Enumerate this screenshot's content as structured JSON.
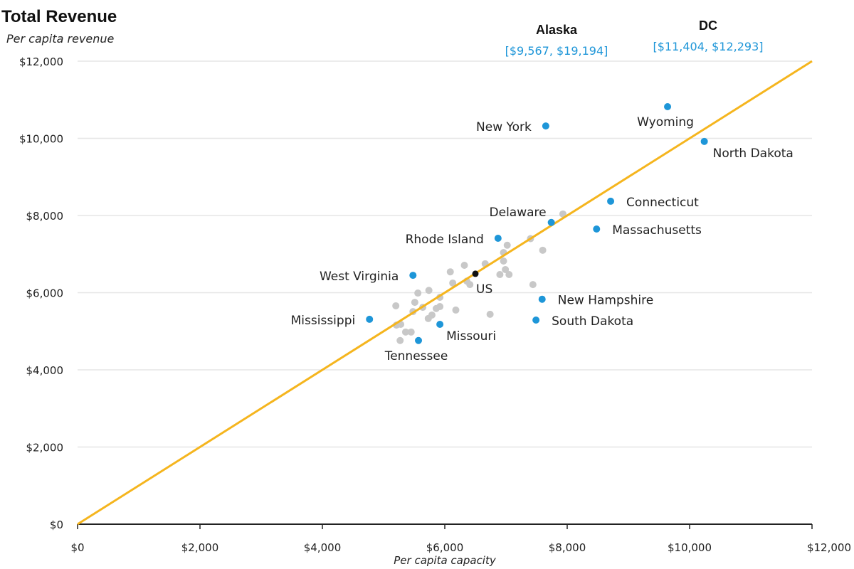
{
  "chart_data": {
    "type": "scatter",
    "title": "Total Revenue",
    "ylabel": "Per capita revenue",
    "xlabel": "Per capita capacity",
    "xlim": [
      0,
      12000
    ],
    "ylim": [
      0,
      12000
    ],
    "x_ticks": [
      "$0",
      "$2,000",
      "$4,000",
      "$6,000",
      "$8,000",
      "$10,000",
      "$12,000"
    ],
    "y_ticks": [
      "$0",
      "$2,000",
      "$4,000",
      "$6,000",
      "$8,000",
      "$10,000",
      "$12,000"
    ],
    "x_tick_values": [
      0,
      2000,
      4000,
      6000,
      8000,
      10000,
      12000
    ],
    "y_tick_values": [
      0,
      2000,
      4000,
      6000,
      8000,
      10000,
      12000
    ],
    "grid": "horizontal",
    "reference_line": {
      "name": "45-degree line",
      "from": [
        0,
        0
      ],
      "to": [
        12000,
        12000
      ],
      "color": "#F5B51E"
    },
    "colors": {
      "highlight": "#1E96D8",
      "other": "#C8C8C8",
      "us": "#111111",
      "range_text": "#1E96D8"
    },
    "labeled_points": [
      {
        "name": "New York",
        "x": 7650,
        "y": 10320,
        "anchor": "left"
      },
      {
        "name": "Wyoming",
        "x": 9640,
        "y": 10820,
        "anchor": "below"
      },
      {
        "name": "North Dakota",
        "x": 10240,
        "y": 9920,
        "anchor": "below-right"
      },
      {
        "name": "Connecticut",
        "x": 8710,
        "y": 8370,
        "anchor": "right"
      },
      {
        "name": "Delaware",
        "x": 7740,
        "y": 7820,
        "anchor": "above-left"
      },
      {
        "name": "Massachusetts",
        "x": 8480,
        "y": 7650,
        "anchor": "right"
      },
      {
        "name": "Rhode Island",
        "x": 6870,
        "y": 7410,
        "anchor": "left"
      },
      {
        "name": "West Virginia",
        "x": 5480,
        "y": 6450,
        "anchor": "left"
      },
      {
        "name": "New Hampshire",
        "x": 7590,
        "y": 5830,
        "anchor": "right"
      },
      {
        "name": "South Dakota",
        "x": 7490,
        "y": 5290,
        "anchor": "right"
      },
      {
        "name": "Mississippi",
        "x": 4770,
        "y": 5310,
        "anchor": "left"
      },
      {
        "name": "Missouri",
        "x": 5920,
        "y": 5180,
        "anchor": "below-right"
      },
      {
        "name": "Tennessee",
        "x": 5570,
        "y": 4760,
        "anchor": "below"
      }
    ],
    "us_point": {
      "name": "US",
      "x": 6500,
      "y": 6490
    },
    "other_points": [
      [
        7930,
        8040
      ],
      [
        7400,
        7400
      ],
      [
        7020,
        7230
      ],
      [
        6960,
        7040
      ],
      [
        6960,
        6820
      ],
      [
        7600,
        7100
      ],
      [
        6660,
        6750
      ],
      [
        6320,
        6710
      ],
      [
        6090,
        6540
      ],
      [
        6990,
        6600
      ],
      [
        6900,
        6470
      ],
      [
        7050,
        6470
      ],
      [
        6360,
        6300
      ],
      [
        6130,
        6250
      ],
      [
        6410,
        6210
      ],
      [
        7440,
        6210
      ],
      [
        5740,
        6060
      ],
      [
        5560,
        5990
      ],
      [
        5920,
        5880
      ],
      [
        5200,
        5660
      ],
      [
        5510,
        5750
      ],
      [
        5640,
        5620
      ],
      [
        5860,
        5590
      ],
      [
        5920,
        5640
      ],
      [
        5480,
        5510
      ],
      [
        6180,
        5550
      ],
      [
        5790,
        5420
      ],
      [
        5730,
        5330
      ],
      [
        6740,
        5440
      ],
      [
        5210,
        5160
      ],
      [
        5280,
        5180
      ],
      [
        5360,
        4980
      ],
      [
        5450,
        4980
      ],
      [
        5270,
        4760
      ]
    ],
    "off_chart": [
      {
        "name": "Alaska",
        "range": "[$9,567,  $19,194]"
      },
      {
        "name": "DC",
        "range": "[$11,404,  $12,293]"
      }
    ]
  }
}
